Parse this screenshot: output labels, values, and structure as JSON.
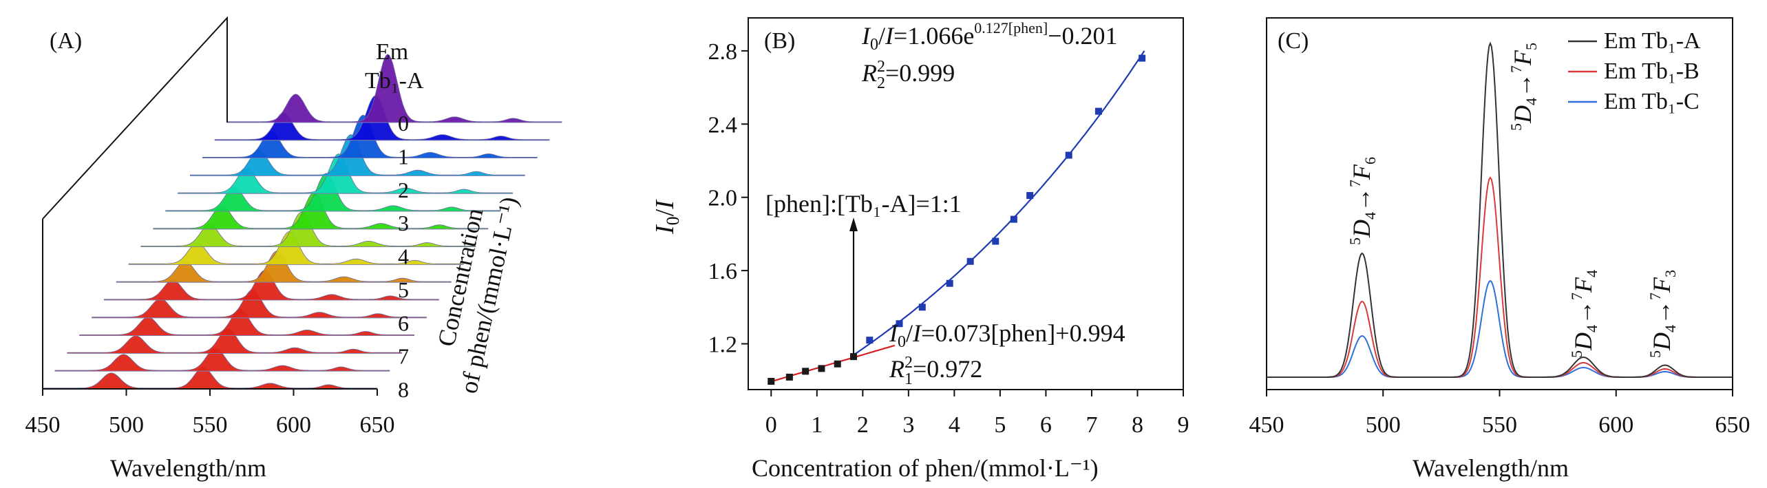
{
  "figure": {
    "colors": {
      "axis": "#111111",
      "fit_exp": "#1f3bb3",
      "fit_lin": "#d42020",
      "point_high": "#1f3bb3",
      "point_low": "#1a1a1a",
      "em_a": "#333333",
      "em_b": "#d83a3a",
      "em_c": "#2f6fdc"
    }
  },
  "chart_data": [
    {
      "panel": "A",
      "type": "area",
      "panel_label": "(A)",
      "xlabel": "Wavelength/nm",
      "depth_label_line1": "Concentration",
      "depth_label_line2": "of phen/(mmol·L⁻¹)",
      "annotation_line1": "Em",
      "annotation_line2": "Tb₁-A",
      "xlim": [
        450,
        650
      ],
      "xticks": [
        "450",
        "500",
        "550",
        "600",
        "650"
      ],
      "depth_ticks": [
        "0",
        "1",
        "2",
        "3",
        "4",
        "5",
        "6",
        "7",
        "8"
      ],
      "series_count": 16,
      "front_series_peak_positions_nm": [
        491,
        546,
        586,
        621
      ],
      "back_series_peak_positions_nm": [
        491,
        546,
        586,
        621
      ]
    },
    {
      "panel": "B",
      "type": "scatter",
      "panel_label": "(B)",
      "xlabel": "Concentration of phen/(mmol·L⁻¹)",
      "ylabel_I0": "I",
      "ylabel_sub": "0",
      "ylabel_slash": "/",
      "ylabel_I": "I",
      "xlim": [
        -0.5,
        9
      ],
      "ylim": [
        0.95,
        2.98
      ],
      "xticks": [
        "0",
        "1",
        "2",
        "3",
        "4",
        "5",
        "6",
        "7",
        "8",
        "9"
      ],
      "yticks": [
        "1.2",
        "1.6",
        "2.0",
        "2.4",
        "2.8"
      ],
      "exp_fit": {
        "a": 1.066,
        "b": 0.127,
        "c": -0.201
      },
      "lin_fit": {
        "slope": 0.073,
        "intercept": 0.994
      },
      "points_low": [
        {
          "x": 0.0,
          "y": 0.995
        },
        {
          "x": 0.4,
          "y": 1.018
        },
        {
          "x": 0.75,
          "y": 1.05
        },
        {
          "x": 1.1,
          "y": 1.065
        },
        {
          "x": 1.45,
          "y": 1.09
        },
        {
          "x": 1.8,
          "y": 1.13
        }
      ],
      "points_high": [
        {
          "x": 2.15,
          "y": 1.22
        },
        {
          "x": 2.8,
          "y": 1.31
        },
        {
          "x": 3.3,
          "y": 1.4
        },
        {
          "x": 3.9,
          "y": 1.53
        },
        {
          "x": 4.35,
          "y": 1.65
        },
        {
          "x": 4.9,
          "y": 1.76
        },
        {
          "x": 5.3,
          "y": 1.88
        },
        {
          "x": 5.65,
          "y": 2.01
        },
        {
          "x": 6.5,
          "y": 2.23
        },
        {
          "x": 7.15,
          "y": 2.47
        },
        {
          "x": 8.1,
          "y": 2.76
        }
      ],
      "eq_exp": {
        "I0": "I",
        "sub0": "0",
        "mid": "/",
        "I": "I",
        "eq": "=1.066e",
        "exp": "0.127[phen]",
        "tail": "−0.201"
      },
      "r2_exp": {
        "R": "R",
        "sub": "2",
        "sup": "2",
        "val": "=0.999"
      },
      "eq_lin": {
        "I0": "I",
        "sub0": "0",
        "mid": "/",
        "I": "I",
        "tail": "=0.073[phen]+0.994"
      },
      "r2_lin": {
        "R": "R",
        "sub": "1",
        "sup": "2",
        "val": "=0.972"
      },
      "ratio_annotation": "[phen]:[Tb₁-A]=1:1",
      "ratio_x": 1.8
    },
    {
      "panel": "C",
      "type": "line",
      "panel_label": "(C)",
      "xlabel": "Wavelength/nm",
      "xlim": [
        450,
        650
      ],
      "xticks": [
        "450",
        "500",
        "550",
        "600",
        "650"
      ],
      "ylim": [
        0,
        1
      ],
      "legend": [
        "Em Tb₁-A",
        "Em Tb₁-B",
        "Em Tb₁-C"
      ],
      "series": [
        {
          "name": "Em Tb₁-A",
          "peaks": [
            {
              "x": 491,
              "h": 0.36
            },
            {
              "x": 546,
              "h": 0.97
            },
            {
              "x": 586,
              "h": 0.058
            },
            {
              "x": 621,
              "h": 0.035
            }
          ]
        },
        {
          "name": "Em Tb₁-B",
          "peaks": [
            {
              "x": 491,
              "h": 0.22
            },
            {
              "x": 546,
              "h": 0.58
            },
            {
              "x": 586,
              "h": 0.042
            },
            {
              "x": 621,
              "h": 0.024
            }
          ]
        },
        {
          "name": "Em Tb₁-C",
          "peaks": [
            {
              "x": 491,
              "h": 0.12
            },
            {
              "x": 546,
              "h": 0.28
            },
            {
              "x": 586,
              "h": 0.028
            },
            {
              "x": 621,
              "h": 0.016
            }
          ]
        }
      ],
      "transitions": [
        {
          "upper": "5",
          "D": "D",
          "dsub": "4",
          "arrow": "→",
          "lower": "7",
          "F": "F",
          "fsub": "6"
        },
        {
          "upper": "5",
          "D": "D",
          "dsub": "4",
          "arrow": "→",
          "lower": "7",
          "F": "F",
          "fsub": "5"
        },
        {
          "upper": "5",
          "D": "D",
          "dsub": "4",
          "arrow": "→",
          "lower": "7",
          "F": "F",
          "fsub": "4"
        },
        {
          "upper": "5",
          "D": "D",
          "dsub": "4",
          "arrow": "→",
          "lower": "7",
          "F": "F",
          "fsub": "3"
        }
      ]
    }
  ]
}
